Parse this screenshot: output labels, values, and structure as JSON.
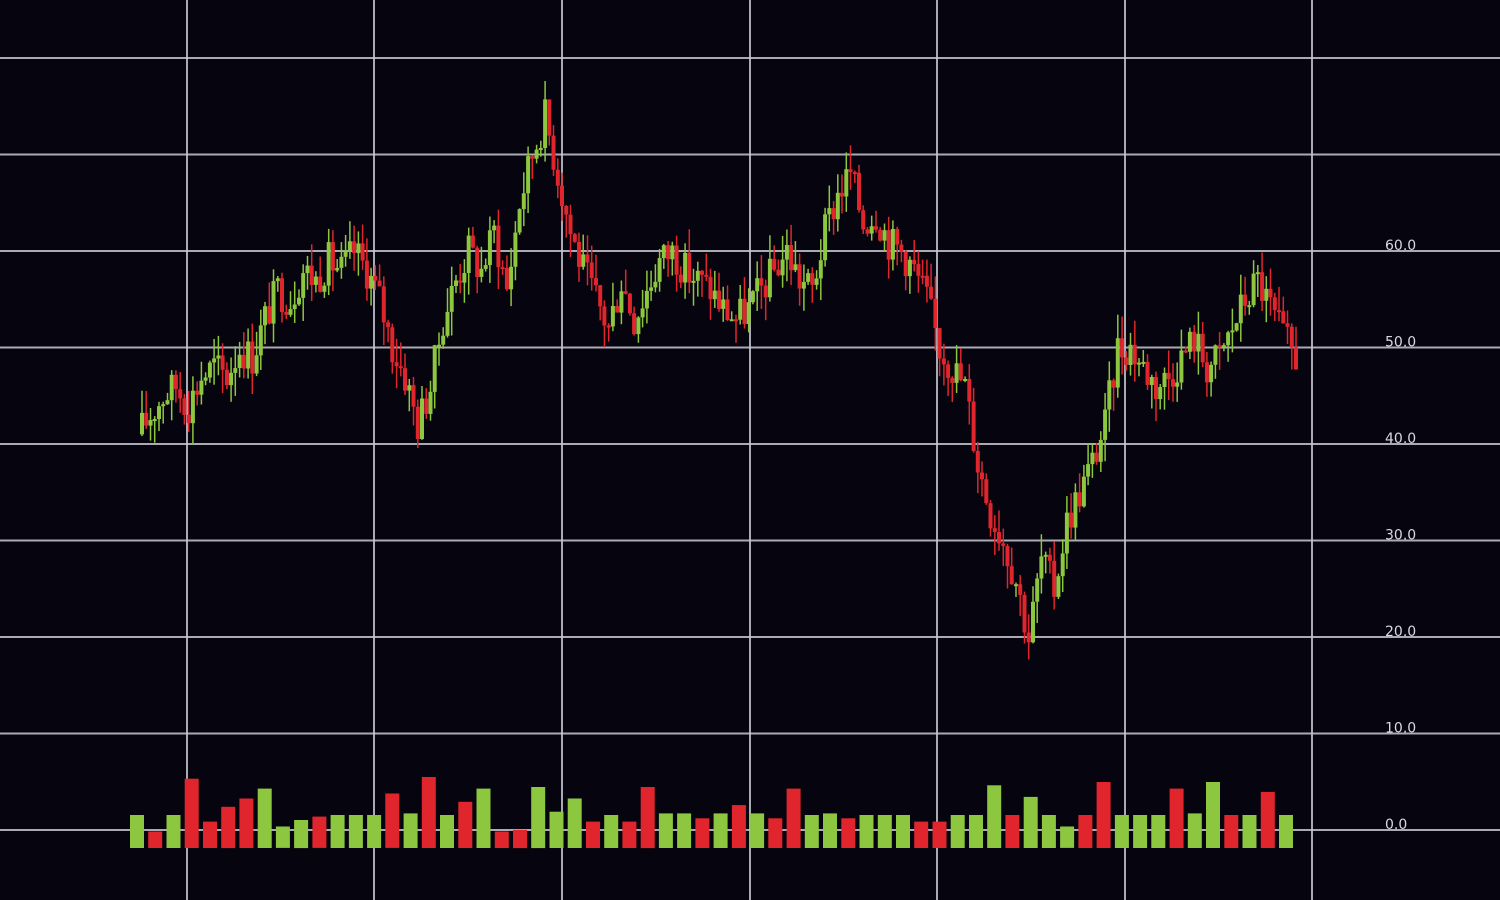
{
  "chart_data": {
    "type": "candlestick",
    "title": "",
    "xlabel": "",
    "ylabel": "",
    "y_axis": {
      "position": "right",
      "min": 0,
      "max": 60,
      "ticks": [
        0,
        10,
        20,
        30,
        40,
        50,
        60
      ],
      "tick_labels": [
        "0.0",
        "10.0",
        "20.0",
        "30.0",
        "40.0",
        "50.0",
        "60.0"
      ]
    },
    "grid": true,
    "colors": {
      "background": "#05040f",
      "grid": "#c8c8d2",
      "up": "#8dc63f",
      "down": "#e0262c",
      "tick_text": "#d8d8e0"
    },
    "price_trend_closes": [
      41,
      43,
      45,
      46,
      44,
      47,
      48,
      47,
      50,
      49,
      53,
      56,
      55,
      58,
      57,
      59,
      58,
      60,
      58,
      55,
      50,
      47,
      42,
      46,
      53,
      57,
      60,
      58,
      62,
      56,
      65,
      70,
      74,
      68,
      62,
      58,
      55,
      52,
      57,
      53,
      56,
      59,
      60,
      58,
      57,
      56,
      54,
      53,
      54,
      56,
      58,
      60,
      57,
      56,
      62,
      66,
      68,
      63,
      64,
      61,
      60,
      58,
      55,
      50,
      48,
      46,
      38,
      33,
      30,
      26,
      20,
      28,
      25,
      32,
      35,
      38,
      42,
      50,
      50,
      48,
      46,
      47,
      49,
      51,
      48,
      49,
      52,
      55,
      57,
      54,
      51,
      49
    ],
    "volume": {
      "bars": [
        {
          "value": 2.0,
          "direction": "up"
        },
        {
          "value": 1.0,
          "direction": "down"
        },
        {
          "value": 2.0,
          "direction": "up"
        },
        {
          "value": 4.2,
          "direction": "down"
        },
        {
          "value": 1.6,
          "direction": "down"
        },
        {
          "value": 2.5,
          "direction": "down"
        },
        {
          "value": 3.0,
          "direction": "down"
        },
        {
          "value": 3.6,
          "direction": "up"
        },
        {
          "value": 1.3,
          "direction": "up"
        },
        {
          "value": 1.7,
          "direction": "up"
        },
        {
          "value": 1.9,
          "direction": "down"
        },
        {
          "value": 2.0,
          "direction": "up"
        },
        {
          "value": 2.0,
          "direction": "up"
        },
        {
          "value": 2.0,
          "direction": "up"
        },
        {
          "value": 3.3,
          "direction": "down"
        },
        {
          "value": 2.1,
          "direction": "up"
        },
        {
          "value": 4.3,
          "direction": "down"
        },
        {
          "value": 2.0,
          "direction": "up"
        },
        {
          "value": 2.8,
          "direction": "down"
        },
        {
          "value": 3.6,
          "direction": "up"
        },
        {
          "value": 1.0,
          "direction": "down"
        },
        {
          "value": 1.1,
          "direction": "down"
        },
        {
          "value": 3.7,
          "direction": "up"
        },
        {
          "value": 2.2,
          "direction": "up"
        },
        {
          "value": 3.0,
          "direction": "up"
        },
        {
          "value": 1.6,
          "direction": "down"
        },
        {
          "value": 2.0,
          "direction": "up"
        },
        {
          "value": 1.6,
          "direction": "down"
        },
        {
          "value": 3.7,
          "direction": "down"
        },
        {
          "value": 2.1,
          "direction": "up"
        },
        {
          "value": 2.1,
          "direction": "up"
        },
        {
          "value": 1.8,
          "direction": "down"
        },
        {
          "value": 2.1,
          "direction": "up"
        },
        {
          "value": 2.6,
          "direction": "down"
        },
        {
          "value": 2.1,
          "direction": "up"
        },
        {
          "value": 1.8,
          "direction": "down"
        },
        {
          "value": 3.6,
          "direction": "down"
        },
        {
          "value": 2.0,
          "direction": "up"
        },
        {
          "value": 2.1,
          "direction": "up"
        },
        {
          "value": 1.8,
          "direction": "down"
        },
        {
          "value": 2.0,
          "direction": "up"
        },
        {
          "value": 2.0,
          "direction": "up"
        },
        {
          "value": 2.0,
          "direction": "up"
        },
        {
          "value": 1.6,
          "direction": "down"
        },
        {
          "value": 1.6,
          "direction": "down"
        },
        {
          "value": 2.0,
          "direction": "up"
        },
        {
          "value": 2.0,
          "direction": "up"
        },
        {
          "value": 3.8,
          "direction": "up"
        },
        {
          "value": 2.0,
          "direction": "down"
        },
        {
          "value": 3.1,
          "direction": "up"
        },
        {
          "value": 2.0,
          "direction": "up"
        },
        {
          "value": 1.3,
          "direction": "up"
        },
        {
          "value": 2.0,
          "direction": "down"
        },
        {
          "value": 4.0,
          "direction": "down"
        },
        {
          "value": 2.0,
          "direction": "up"
        },
        {
          "value": 2.0,
          "direction": "up"
        },
        {
          "value": 2.0,
          "direction": "up"
        },
        {
          "value": 3.6,
          "direction": "down"
        },
        {
          "value": 2.1,
          "direction": "up"
        },
        {
          "value": 4.0,
          "direction": "up"
        },
        {
          "value": 2.0,
          "direction": "down"
        },
        {
          "value": 2.0,
          "direction": "up"
        },
        {
          "value": 3.4,
          "direction": "down"
        },
        {
          "value": 2.0,
          "direction": "up"
        }
      ]
    }
  }
}
